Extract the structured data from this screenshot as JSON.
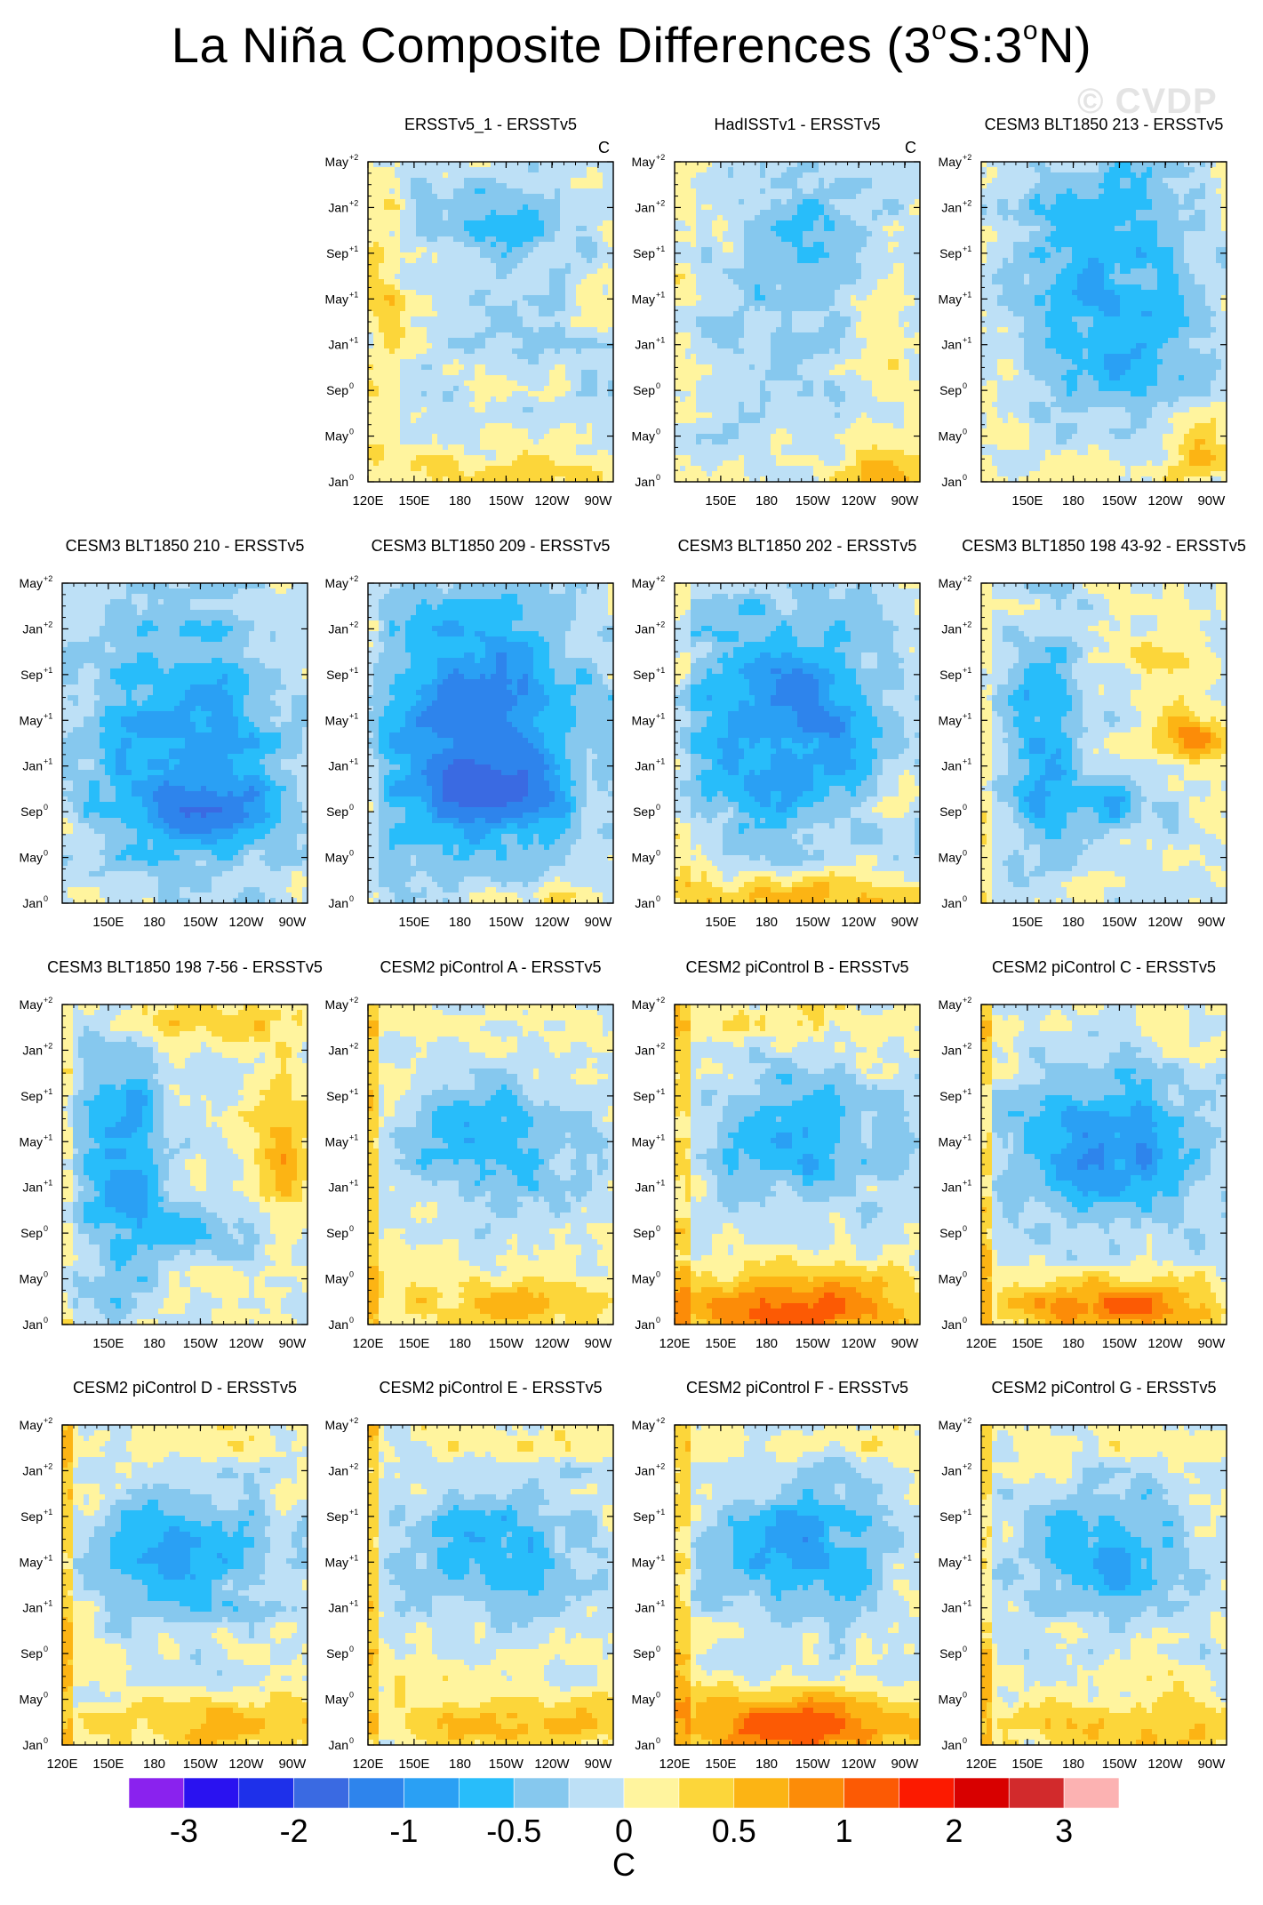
{
  "title": {
    "prefix": "La Niña Composite Differences (3",
    "deg1": "o",
    "middle": "S:3",
    "deg2": "o",
    "suffix": "N)"
  },
  "watermark": "© CVDP",
  "chart_data": {
    "type": "heatmap",
    "description_of_axes": "Hovmoller: x = longitude, y = month relative to La Nina onset",
    "x_tick_labels": [
      "120E",
      "150E",
      "180",
      "150W",
      "120W",
      "90W"
    ],
    "y_tick_labels": [
      {
        "base": "Jan",
        "sup": "0"
      },
      {
        "base": "May",
        "sup": "0"
      },
      {
        "base": "Sep",
        "sup": "0"
      },
      {
        "base": "Jan",
        "sup": "+1"
      },
      {
        "base": "May",
        "sup": "+1"
      },
      {
        "base": "Sep",
        "sup": "+1"
      },
      {
        "base": "Jan",
        "sup": "+2"
      },
      {
        "base": "May",
        "sup": "+2"
      }
    ],
    "units": "C",
    "colorbar": {
      "labels": [
        "-3",
        "-2",
        "-1",
        "-0.5",
        "0",
        "0.5",
        "1",
        "2",
        "3"
      ],
      "colors": [
        "#8a22ee",
        "#2a12f0",
        "#1e30ea",
        "#3a6ae2",
        "#2e84ec",
        "#2aa0f4",
        "#28bdfa",
        "#86c8ee",
        "#bde0f6",
        "#fff49e",
        "#fcd63a",
        "#fcb414",
        "#fc8c08",
        "#fc5a04",
        "#fc1a00",
        "#d80000",
        "#d22a2c",
        "#fcb2b2"
      ],
      "unit_label": "C"
    },
    "panels": [
      {
        "title": "ERSSTv5_1 - ERSSTv5",
        "unit": "C",
        "row": 0,
        "col": 1,
        "pattern": "obs1",
        "x_labels": [
          "120E",
          "150E",
          "180",
          "150W",
          "120W",
          "90W"
        ]
      },
      {
        "title": "HadISSTv1 - ERSSTv5",
        "unit": "C",
        "row": 0,
        "col": 2,
        "pattern": "obs2",
        "x_labels": [
          "150E",
          "180",
          "150W",
          "120W",
          "90W"
        ]
      },
      {
        "title": "CESM3 BLT1850 213 - ERSSTv5",
        "unit": "",
        "row": 0,
        "col": 3,
        "pattern": "cold_weak",
        "x_labels": [
          "150E",
          "180",
          "150W",
          "120W",
          "90W"
        ]
      },
      {
        "title": "CESM3 BLT1850 210 - ERSSTv5",
        "unit": "",
        "row": 1,
        "col": 0,
        "pattern": "cold_med",
        "x_labels": [
          "150E",
          "180",
          "150W",
          "120W",
          "90W"
        ]
      },
      {
        "title": "CESM3 BLT1850 209 - ERSSTv5",
        "unit": "",
        "row": 1,
        "col": 1,
        "pattern": "cold_strong",
        "x_labels": [
          "150E",
          "180",
          "150W",
          "120W",
          "90W"
        ]
      },
      {
        "title": "CESM3 BLT1850 202 - ERSSTv5",
        "unit": "",
        "row": 1,
        "col": 2,
        "pattern": "cold_warmbottom",
        "x_labels": [
          "150E",
          "180",
          "150W",
          "120W",
          "90W"
        ]
      },
      {
        "title": "CESM3 BLT1850 198 43-92 - ERSSTv5",
        "unit": "",
        "row": 1,
        "col": 3,
        "pattern": "cold_warmeast",
        "x_labels": [
          "150E",
          "180",
          "150W",
          "120W",
          "90W"
        ]
      },
      {
        "title": "CESM3 BLT1850 198 7-56 - ERSSTv5",
        "unit": "",
        "row": 2,
        "col": 0,
        "pattern": "cold_warmtopeast",
        "x_labels": [
          "150E",
          "180",
          "150W",
          "120W",
          "90W"
        ]
      },
      {
        "title": "CESM2 piControl A - ERSSTv5",
        "unit": "",
        "row": 2,
        "col": 1,
        "pattern": "cesm2_mild",
        "x_labels": [
          "120E",
          "150E",
          "180",
          "150W",
          "120W",
          "90W"
        ]
      },
      {
        "title": "CESM2 piControl B - ERSSTv5",
        "unit": "",
        "row": 2,
        "col": 2,
        "pattern": "cesm2_strongwarm",
        "x_labels": [
          "120E",
          "150E",
          "180",
          "150W",
          "120W",
          "90W"
        ]
      },
      {
        "title": "CESM2 piControl C - ERSSTv5",
        "unit": "",
        "row": 2,
        "col": 3,
        "pattern": "cesm2_strong",
        "x_labels": [
          "120E",
          "150E",
          "180",
          "150W",
          "120W",
          "90W"
        ]
      },
      {
        "title": "CESM2 piControl D - ERSSTv5",
        "unit": "",
        "row": 3,
        "col": 0,
        "pattern": "cesm2_mild",
        "x_labels": [
          "120E",
          "150E",
          "180",
          "150W",
          "120W",
          "90W"
        ]
      },
      {
        "title": "CESM2 piControl E - ERSSTv5",
        "unit": "",
        "row": 3,
        "col": 1,
        "pattern": "cesm2_mild",
        "x_labels": [
          "120E",
          "150E",
          "180",
          "150W",
          "120W",
          "90W"
        ]
      },
      {
        "title": "CESM2 piControl F - ERSSTv5",
        "unit": "",
        "row": 3,
        "col": 2,
        "pattern": "cesm2_strongwarm",
        "x_labels": [
          "120E",
          "150E",
          "180",
          "150W",
          "120W",
          "90W"
        ]
      },
      {
        "title": "CESM2 piControl G - ERSSTv5",
        "unit": "",
        "row": 3,
        "col": 3,
        "pattern": "cesm2_mild",
        "x_labels": [
          "120E",
          "150E",
          "180",
          "150W",
          "120W",
          "90W"
        ]
      }
    ]
  }
}
